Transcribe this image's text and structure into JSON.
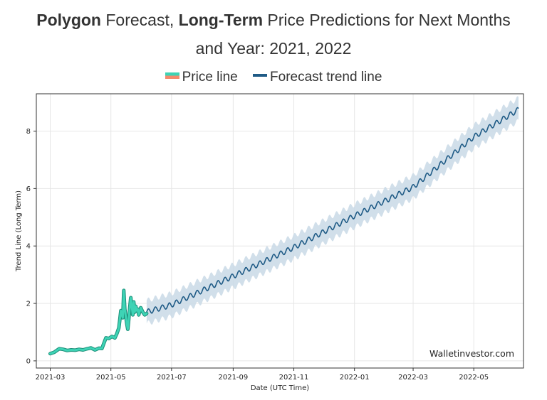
{
  "title": {
    "part1_bold": "Polygon",
    "part2": " Forecast, ",
    "part3_bold": "Long-Term",
    "part4": " Price Predictions for Next Months",
    "line2": "and Year: 2021, 2022"
  },
  "legend": {
    "price_label": "Price line",
    "trend_label": "Forecast trend line"
  },
  "watermark": "Walletinvestor.com",
  "colors": {
    "price": "#3ed3b5",
    "price_alt": "#f58a6c",
    "trend": "#1f5b86",
    "band": "#c9d9e6"
  },
  "chart_data": {
    "type": "line",
    "xlabel": "Date (UTC Time)",
    "ylabel": "Trend Line (Long Term)",
    "x_ticks": [
      "2021-03",
      "2021-05",
      "2021-07",
      "2021-09",
      "2021-11",
      "2022-01",
      "2022-03",
      "2022-05"
    ],
    "y_ticks": [
      "0",
      "2",
      "4",
      "6",
      "8"
    ],
    "xlim": [
      "2021-02-15",
      "2022-06-20"
    ],
    "ylim": [
      -0.25,
      9.3
    ],
    "grid": true,
    "legend_position": "top",
    "series": [
      {
        "name": "Price line",
        "x": [
          "2021-03-01",
          "2021-03-05",
          "2021-03-10",
          "2021-03-14",
          "2021-03-18",
          "2021-03-22",
          "2021-03-26",
          "2021-03-30",
          "2021-04-03",
          "2021-04-07",
          "2021-04-11",
          "2021-04-15",
          "2021-04-19",
          "2021-04-22",
          "2021-04-26",
          "2021-04-29",
          "2021-05-02",
          "2021-05-05",
          "2021-05-07",
          "2021-05-09",
          "2021-05-11",
          "2021-05-13",
          "2021-05-14",
          "2021-05-15",
          "2021-05-16",
          "2021-05-17",
          "2021-05-18",
          "2021-05-19",
          "2021-05-20",
          "2021-05-21",
          "2021-05-22",
          "2021-05-23",
          "2021-05-24",
          "2021-05-25",
          "2021-05-26",
          "2021-05-27",
          "2021-05-28",
          "2021-05-29",
          "2021-05-31",
          "2021-06-02",
          "2021-06-04",
          "2021-06-06"
        ],
        "y": [
          0.25,
          0.3,
          0.42,
          0.4,
          0.36,
          0.38,
          0.37,
          0.4,
          0.38,
          0.42,
          0.45,
          0.38,
          0.44,
          0.43,
          0.8,
          0.78,
          0.85,
          0.8,
          0.95,
          1.15,
          1.75,
          1.5,
          2.45,
          1.8,
          1.55,
          1.3,
          1.1,
          1.45,
          1.85,
          2.2,
          1.9,
          1.6,
          2.05,
          1.7,
          1.9,
          1.75,
          1.8,
          1.6,
          1.85,
          1.7,
          1.6,
          1.65
        ]
      },
      {
        "name": "Forecast trend line",
        "x": [
          "2021-06-06",
          "2021-07-01",
          "2021-09-01",
          "2021-11-01",
          "2022-01-01",
          "2022-03-01",
          "2022-05-01",
          "2022-06-15"
        ],
        "y": [
          1.7,
          1.95,
          2.95,
          3.95,
          5.05,
          6.05,
          7.8,
          8.75
        ],
        "band_width": 0.4
      }
    ]
  }
}
